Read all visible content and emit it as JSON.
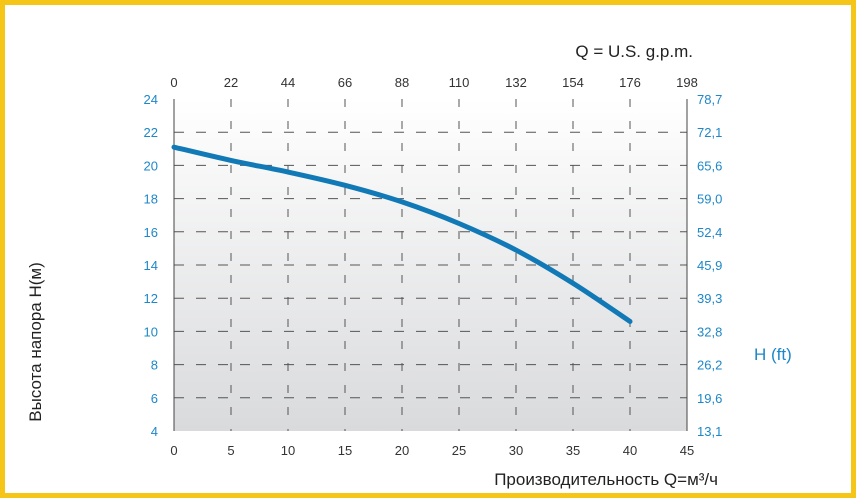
{
  "chart_data": {
    "type": "line",
    "top_axis_label": "Q = U.S. g.p.m.",
    "xlabel": "Производительность Q=м³/ч",
    "ylabel": "Высота напора  H(м)",
    "right_axis_label": "H (ft)",
    "xlim": [
      0,
      45
    ],
    "ylim": [
      4,
      24
    ],
    "x_ticks": [
      "0",
      "5",
      "10",
      "15",
      "20",
      "25",
      "30",
      "35",
      "40",
      "45"
    ],
    "top_ticks": [
      "0",
      "22",
      "44",
      "66",
      "88",
      "110",
      "132",
      "154",
      "176",
      "198"
    ],
    "y_ticks": [
      "4",
      "6",
      "8",
      "10",
      "12",
      "14",
      "16",
      "18",
      "20",
      "22",
      "24"
    ],
    "right_ticks": [
      "13,1",
      "19,6",
      "26,2",
      "32,8",
      "39,3",
      "45,9",
      "52,4",
      "59,0",
      "65,6",
      "72,1",
      "78,7"
    ],
    "grid": true,
    "series": [
      {
        "x": [
          0,
          5,
          10,
          15,
          20,
          25,
          30,
          35,
          40
        ],
        "y": [
          21.1,
          20.3,
          19.6,
          18.8,
          17.8,
          16.5,
          14.9,
          12.9,
          10.6
        ]
      }
    ],
    "colors": {
      "line": "#1279b7",
      "tick_blue": "#1d87c8",
      "frame": "#f5c518",
      "grid": "#555555"
    }
  }
}
